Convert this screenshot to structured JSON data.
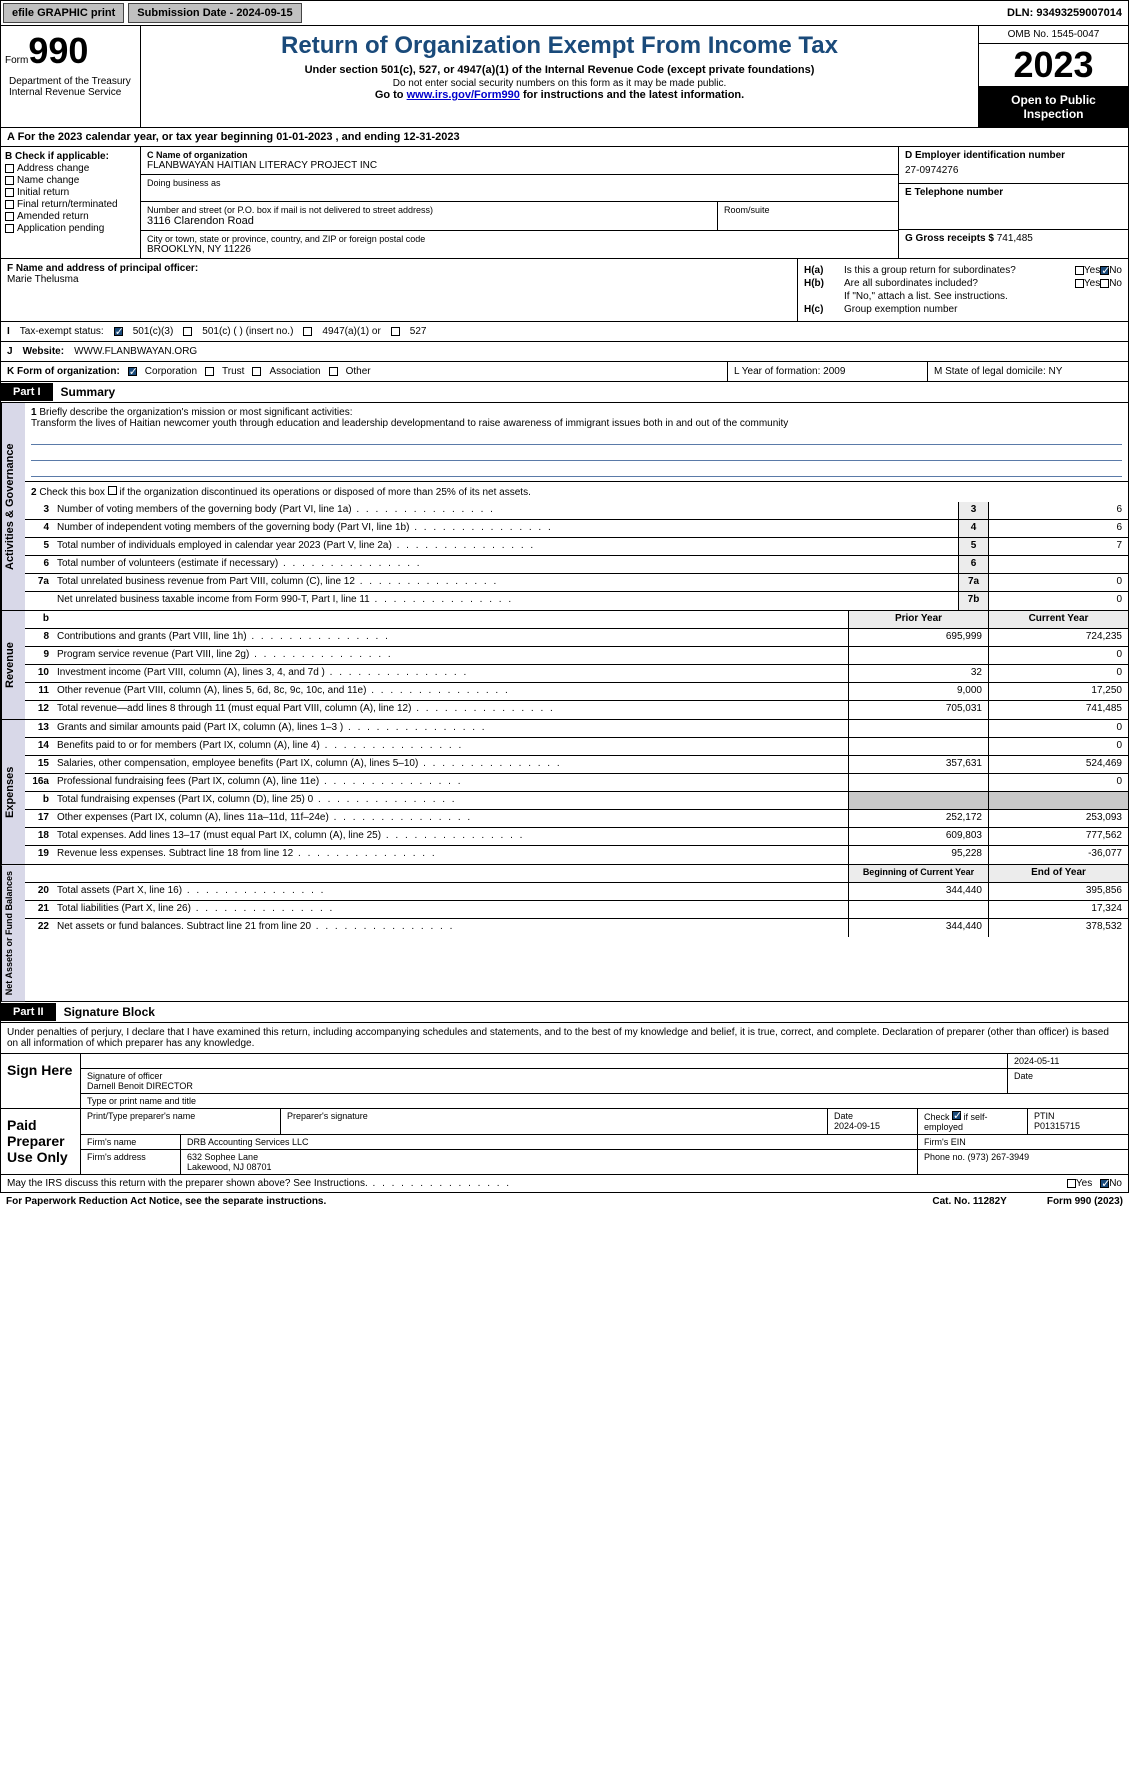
{
  "topbar": {
    "efile": "efile GRAPHIC print",
    "submission": "Submission Date - 2024-09-15",
    "dln": "DLN: 93493259007014"
  },
  "header": {
    "form_label": "Form",
    "form_number": "990",
    "dept": "Department of the Treasury Internal Revenue Service",
    "title": "Return of Organization Exempt From Income Tax",
    "subtitle": "Under section 501(c), 527, or 4947(a)(1) of the Internal Revenue Code (except private foundations)",
    "warn": "Do not enter social security numbers on this form as it may be made public.",
    "goto_pre": "Go to ",
    "goto_link": "www.irs.gov/Form990",
    "goto_post": " for instructions and the latest information.",
    "omb": "OMB No. 1545-0047",
    "year": "2023",
    "open": "Open to Public Inspection"
  },
  "section_a": "A  For the 2023 calendar year, or tax year beginning 01-01-2023   , and ending 12-31-2023",
  "col_b": {
    "label": "B Check if applicable:",
    "items": [
      "Address change",
      "Name change",
      "Initial return",
      "Final return/terminated",
      "Amended return",
      "Application pending"
    ]
  },
  "col_c": {
    "name_label": "C Name of organization",
    "name": "FLANBWAYAN HAITIAN LITERACY PROJECT INC",
    "dba": "Doing business as",
    "addr_label": "Number and street (or P.O. box if mail is not delivered to street address)",
    "addr": "3116 Clarendon Road",
    "room_label": "Room/suite",
    "city_label": "City or town, state or province, country, and ZIP or foreign postal code",
    "city": "BROOKLYN, NY  11226"
  },
  "col_d": {
    "ein_label": "D Employer identification number",
    "ein": "27-0974276",
    "tel_label": "E Telephone number",
    "gross_label": "G Gross receipts $",
    "gross": "741,485"
  },
  "row_f": {
    "label": "F  Name and address of principal officer:",
    "name": "Marie Thelusma"
  },
  "row_h": {
    "a_label": "H(a)",
    "a_text": "Is this a group return for subordinates?",
    "b_label": "H(b)",
    "b_text": "Are all subordinates included?",
    "b_note": "If \"No,\" attach a list. See instructions.",
    "c_label": "H(c)",
    "c_text": "Group exemption number"
  },
  "row_i": {
    "label": "I",
    "text": "Tax-exempt status:",
    "opts": [
      "501(c)(3)",
      "501(c) (  ) (insert no.)",
      "4947(a)(1) or",
      "527"
    ]
  },
  "row_j": {
    "label": "J",
    "text": "Website:",
    "value": "WWW.FLANBWAYAN.ORG"
  },
  "row_k": {
    "label": "K Form of organization:",
    "opts": [
      "Corporation",
      "Trust",
      "Association",
      "Other"
    ],
    "l": "L Year of formation: 2009",
    "m": "M State of legal domicile: NY"
  },
  "part1": {
    "tag": "Part I",
    "title": "Summary"
  },
  "summary": {
    "q1_label": "1",
    "q1": "Briefly describe the organization's mission or most significant activities:",
    "q1_text": "Transform the lives of Haitian newcomer youth through education and leadership developmentand to raise awareness of immigrant issues both in and out of the community",
    "q2_label": "2",
    "q2": "Check this box      if the organization discontinued its operations or disposed of more than 25% of its net assets.",
    "lines_gov": [
      {
        "n": "3",
        "d": "Number of voting members of the governing body (Part VI, line 1a)",
        "b": "3",
        "v": "6"
      },
      {
        "n": "4",
        "d": "Number of independent voting members of the governing body (Part VI, line 1b)",
        "b": "4",
        "v": "6"
      },
      {
        "n": "5",
        "d": "Total number of individuals employed in calendar year 2023 (Part V, line 2a)",
        "b": "5",
        "v": "7"
      },
      {
        "n": "6",
        "d": "Total number of volunteers (estimate if necessary)",
        "b": "6",
        "v": ""
      },
      {
        "n": "7a",
        "d": "Total unrelated business revenue from Part VIII, column (C), line 12",
        "b": "7a",
        "v": "0"
      },
      {
        "n": "",
        "d": "Net unrelated business taxable income from Form 990-T, Part I, line 11",
        "b": "7b",
        "v": "0"
      }
    ],
    "hdr_prior": "Prior Year",
    "hdr_current": "Current Year",
    "lines_rev": [
      {
        "n": "8",
        "d": "Contributions and grants (Part VIII, line 1h)",
        "p": "695,999",
        "c": "724,235"
      },
      {
        "n": "9",
        "d": "Program service revenue (Part VIII, line 2g)",
        "p": "",
        "c": "0"
      },
      {
        "n": "10",
        "d": "Investment income (Part VIII, column (A), lines 3, 4, and 7d )",
        "p": "32",
        "c": "0"
      },
      {
        "n": "11",
        "d": "Other revenue (Part VIII, column (A), lines 5, 6d, 8c, 9c, 10c, and 11e)",
        "p": "9,000",
        "c": "17,250"
      },
      {
        "n": "12",
        "d": "Total revenue—add lines 8 through 11 (must equal Part VIII, column (A), line 12)",
        "p": "705,031",
        "c": "741,485"
      }
    ],
    "lines_exp": [
      {
        "n": "13",
        "d": "Grants and similar amounts paid (Part IX, column (A), lines 1–3 )",
        "p": "",
        "c": "0"
      },
      {
        "n": "14",
        "d": "Benefits paid to or for members (Part IX, column (A), line 4)",
        "p": "",
        "c": "0"
      },
      {
        "n": "15",
        "d": "Salaries, other compensation, employee benefits (Part IX, column (A), lines 5–10)",
        "p": "357,631",
        "c": "524,469"
      },
      {
        "n": "16a",
        "d": "Professional fundraising fees (Part IX, column (A), line 11e)",
        "p": "",
        "c": "0"
      },
      {
        "n": "b",
        "d": "Total fundraising expenses (Part IX, column (D), line 25) 0",
        "p": "grey",
        "c": "grey"
      },
      {
        "n": "17",
        "d": "Other expenses (Part IX, column (A), lines 11a–11d, 11f–24e)",
        "p": "252,172",
        "c": "253,093"
      },
      {
        "n": "18",
        "d": "Total expenses. Add lines 13–17 (must equal Part IX, column (A), line 25)",
        "p": "609,803",
        "c": "777,562"
      },
      {
        "n": "19",
        "d": "Revenue less expenses. Subtract line 18 from line 12",
        "p": "95,228",
        "c": "-36,077"
      }
    ],
    "hdr_beg": "Beginning of Current Year",
    "hdr_end": "End of Year",
    "lines_net": [
      {
        "n": "20",
        "d": "Total assets (Part X, line 16)",
        "p": "344,440",
        "c": "395,856"
      },
      {
        "n": "21",
        "d": "Total liabilities (Part X, line 26)",
        "p": "",
        "c": "17,324"
      },
      {
        "n": "22",
        "d": "Net assets or fund balances. Subtract line 21 from line 20",
        "p": "344,440",
        "c": "378,532"
      }
    ]
  },
  "sides": {
    "gov": "Activities & Governance",
    "rev": "Revenue",
    "exp": "Expenses",
    "net": "Net Assets or Fund Balances"
  },
  "part2": {
    "tag": "Part II",
    "title": "Signature Block"
  },
  "sig": {
    "intro": "Under penalties of perjury, I declare that I have examined this return, including accompanying schedules and statements, and to the best of my knowledge and belief, it is true, correct, and complete. Declaration of preparer (other than officer) is based on all information of which preparer has any knowledge.",
    "sign_here": "Sign Here",
    "date1": "2024-05-11",
    "sig_officer": "Signature of officer",
    "officer_name": "Darnell Benoit  DIRECTOR",
    "type_name": "Type or print name and title",
    "paid": "Paid Preparer Use Only",
    "prep_name_lbl": "Print/Type preparer's name",
    "prep_sig_lbl": "Preparer's signature",
    "date_lbl": "Date",
    "date2": "2024-09-15",
    "check_lbl": "Check       if self-employed",
    "ptin_lbl": "PTIN",
    "ptin": "P01315715",
    "firm_name_lbl": "Firm's name",
    "firm_name": "DRB Accounting Services LLC",
    "firm_ein_lbl": "Firm's EIN",
    "firm_addr_lbl": "Firm's address",
    "firm_addr": "632 Sophee Lane",
    "firm_city": "Lakewood, NJ  08701",
    "phone_lbl": "Phone no.",
    "phone": "(973) 267-3949"
  },
  "footer": {
    "discuss": "May the IRS discuss this return with the preparer shown above? See Instructions.",
    "yes": "Yes",
    "no": "No",
    "paperwork": "For Paperwork Reduction Act Notice, see the separate instructions.",
    "cat": "Cat. No. 11282Y",
    "form": "Form 990 (2023)"
  }
}
